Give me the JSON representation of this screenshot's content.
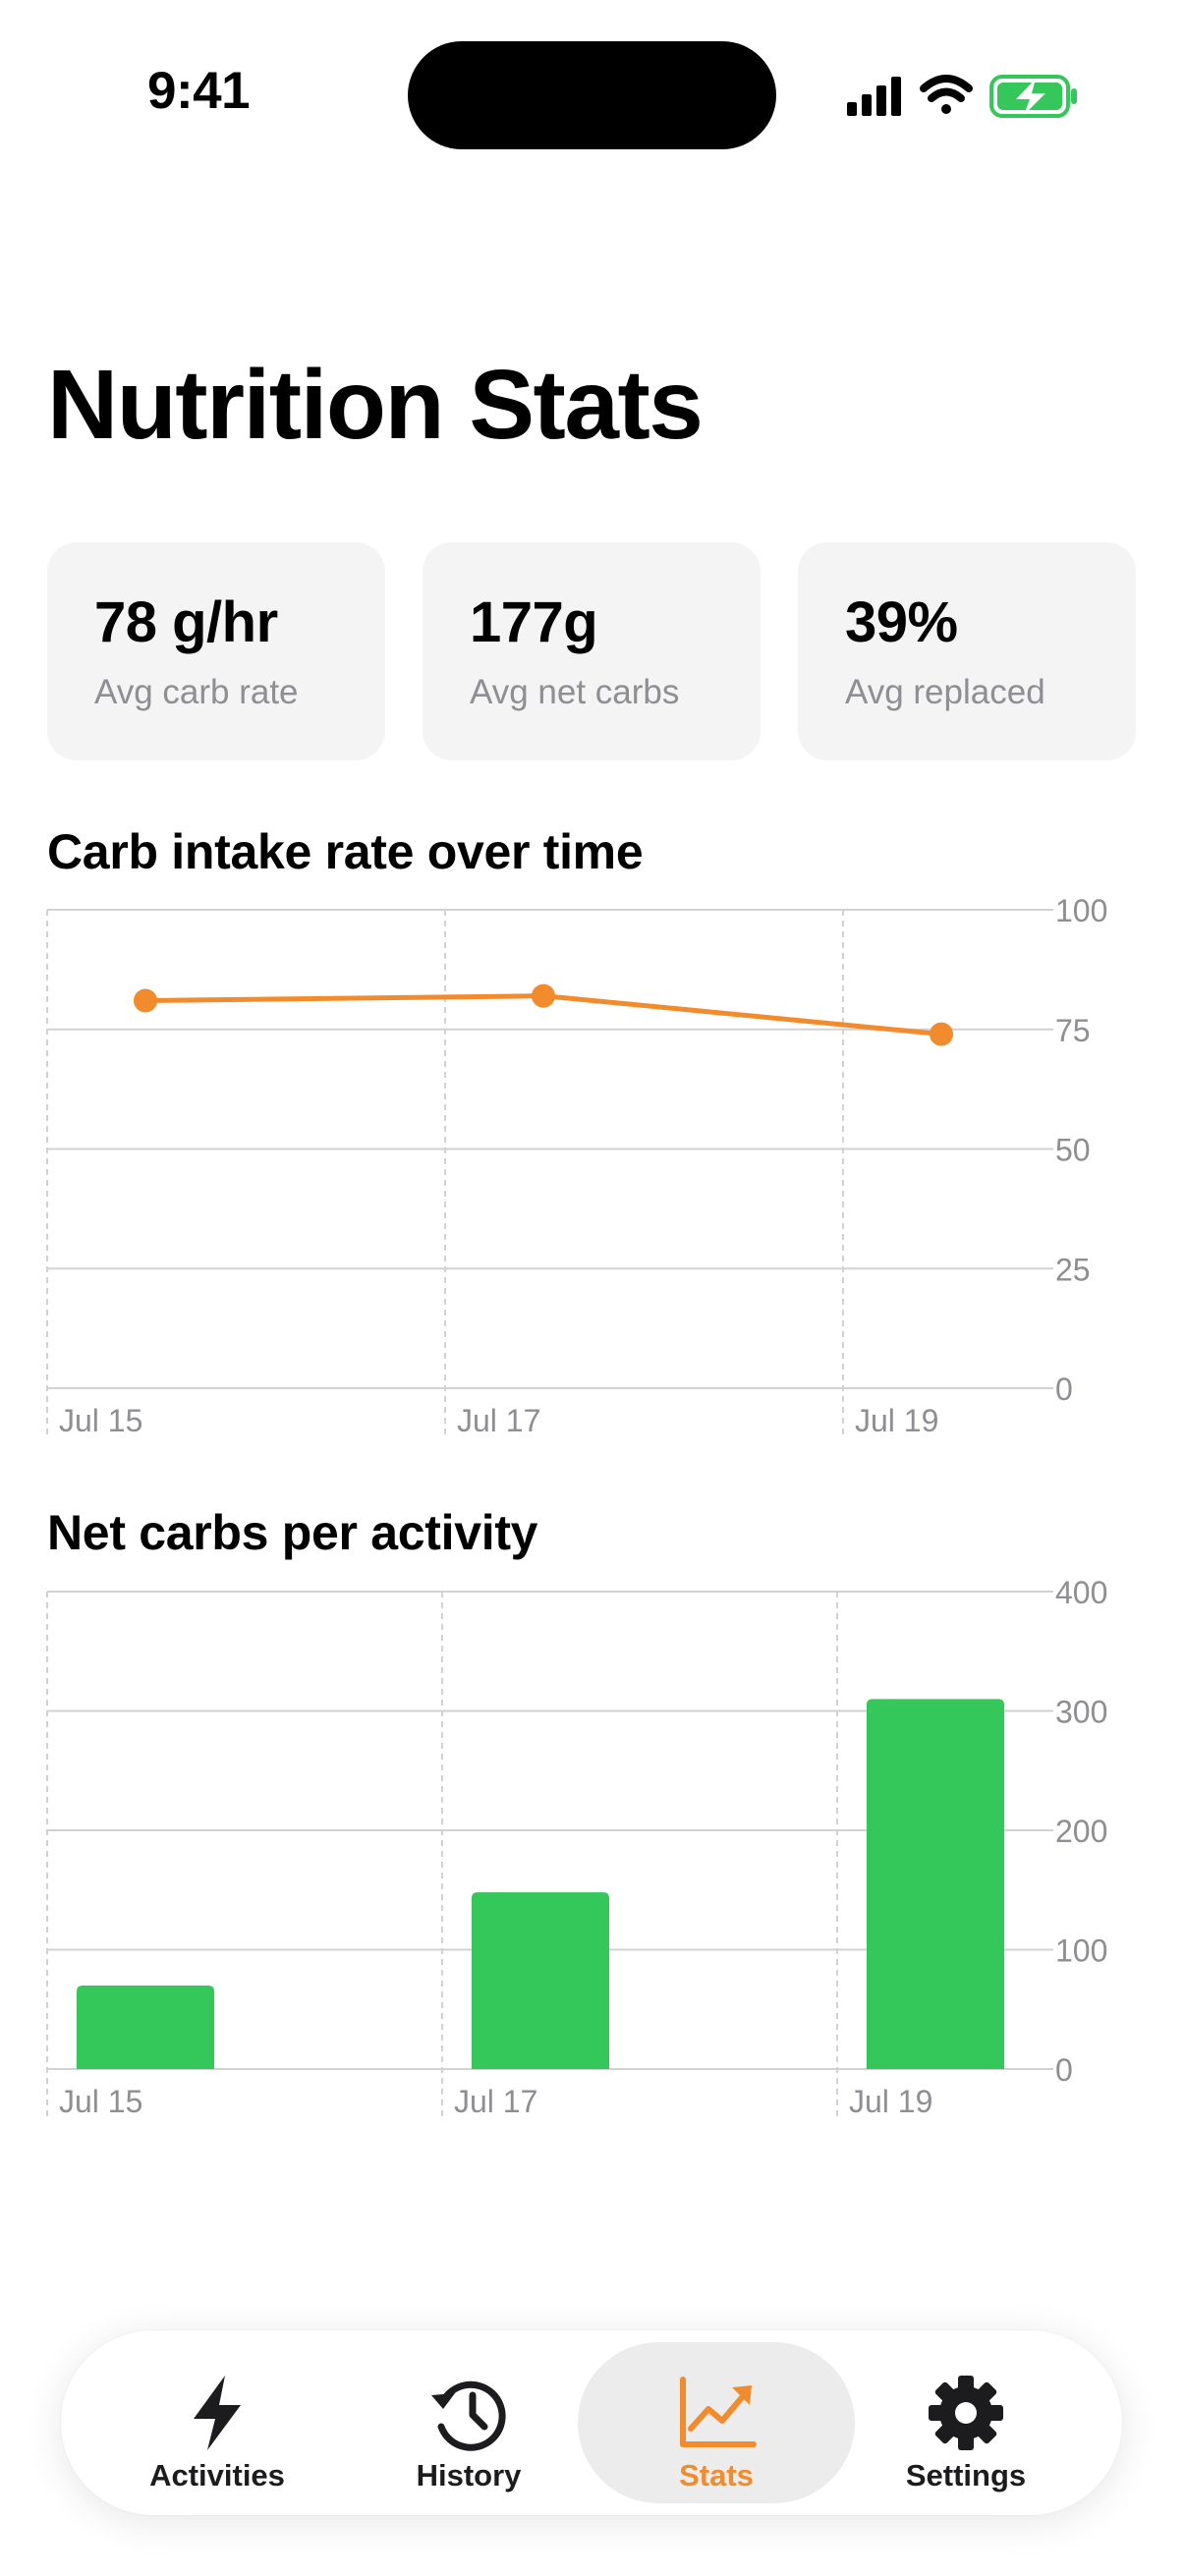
{
  "status_bar": {
    "time": "9:41"
  },
  "page": {
    "title": "Nutrition Stats"
  },
  "stats": [
    {
      "value": "78 g/hr",
      "label": "Avg carb rate"
    },
    {
      "value": "177g",
      "label": "Avg net carbs"
    },
    {
      "value": "39%",
      "label": "Avg replaced"
    }
  ],
  "colors": {
    "accent": "#f28b2c",
    "bar": "#34c759",
    "grid": "#d1d1d6",
    "axis_text": "#8e8e93"
  },
  "chart_data": [
    {
      "type": "line",
      "title": "Carb intake rate over time",
      "x": [
        "Jul 15",
        "Jul 17",
        "Jul 19"
      ],
      "x_tick_labels": [
        "Jul 15",
        "Jul 17",
        "Jul 19"
      ],
      "series": [
        {
          "values": [
            81,
            82,
            74
          ],
          "color": "#f28b2c"
        }
      ],
      "ylim": [
        0,
        100
      ],
      "y_ticks": [
        0,
        25,
        50,
        75,
        100
      ],
      "y_axis_side": "right",
      "grid": true
    },
    {
      "type": "bar",
      "title": "Net carbs per activity",
      "categories": [
        "Jul 15",
        "Jul 17",
        "Jul 19"
      ],
      "x_tick_labels": [
        "Jul 15",
        "Jul 17",
        "Jul 19"
      ],
      "values": [
        70,
        148,
        310
      ],
      "color": "#34c759",
      "ylim": [
        0,
        400
      ],
      "y_ticks": [
        0,
        100,
        200,
        300,
        400
      ],
      "y_axis_side": "right",
      "grid": true
    }
  ],
  "tab_bar": {
    "tabs": [
      {
        "label": "Activities",
        "icon": "bolt-icon",
        "active": false
      },
      {
        "label": "History",
        "icon": "history-icon",
        "active": false
      },
      {
        "label": "Stats",
        "icon": "chart-icon",
        "active": true
      },
      {
        "label": "Settings",
        "icon": "gear-icon",
        "active": false
      }
    ]
  }
}
